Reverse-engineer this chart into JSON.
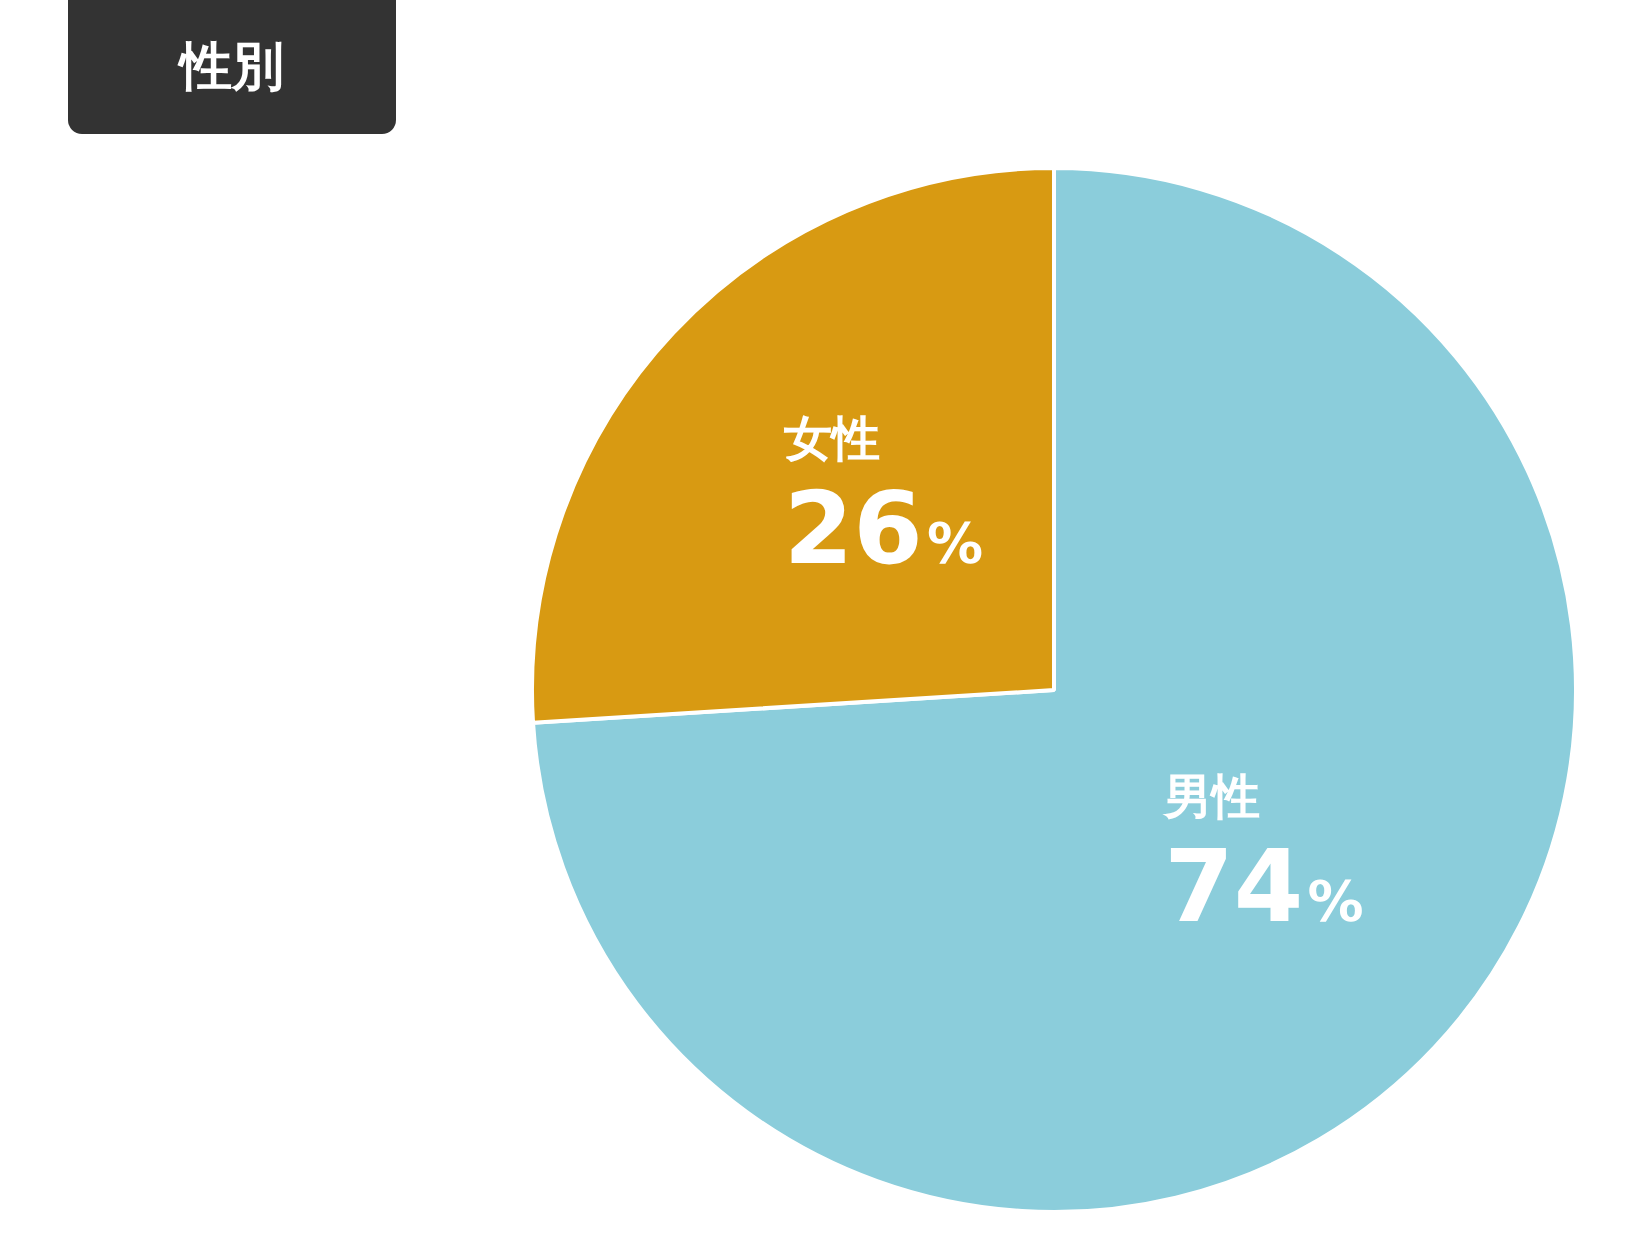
{
  "chart_data": {
    "type": "pie",
    "title": "性別",
    "categories": [
      "男性",
      "女性"
    ],
    "values": [
      74,
      26
    ],
    "colors": [
      "#8bcddb",
      "#d89a12"
    ],
    "value_labels": [
      "74%",
      "26%"
    ],
    "legend": false
  }
}
